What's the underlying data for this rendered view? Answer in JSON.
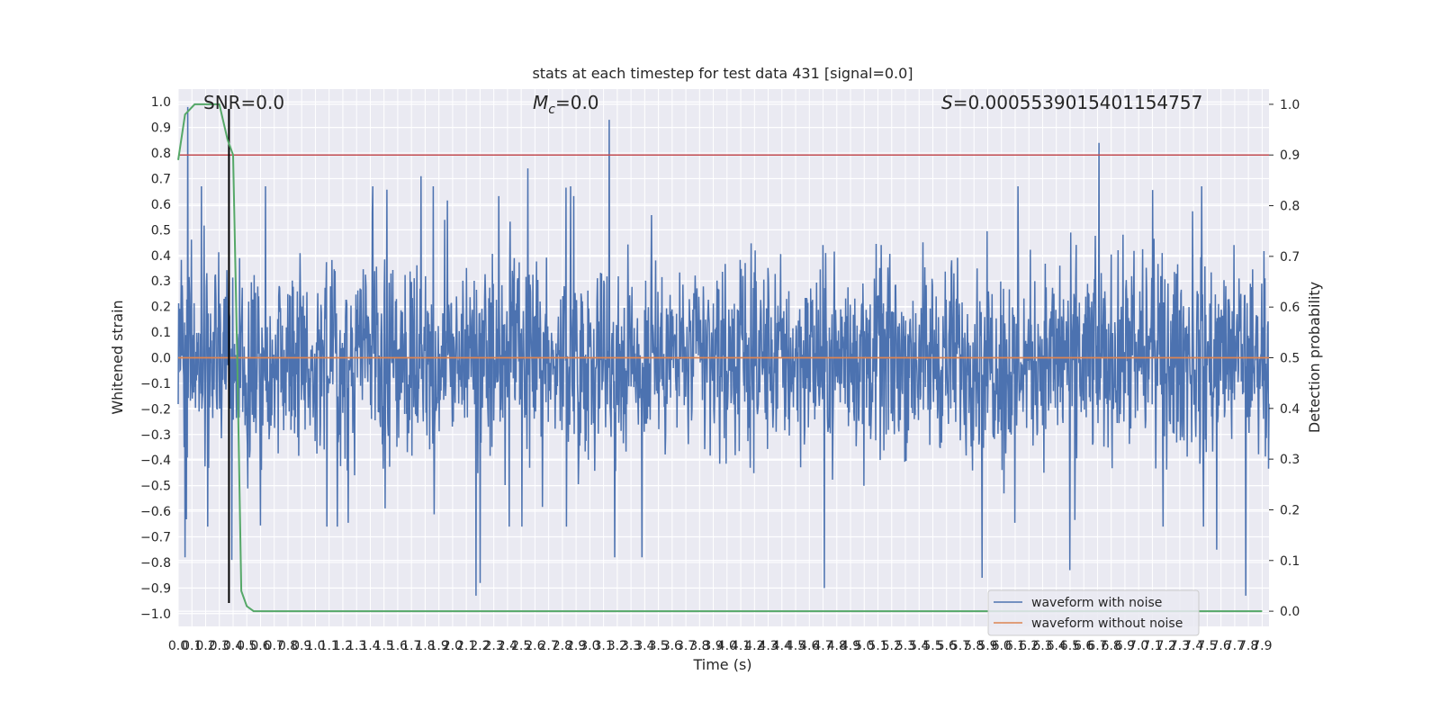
{
  "chart_data": {
    "type": "line",
    "title": "stats at each timestep for test data 431 [signal=0.0]",
    "xlabel": "Time (s)",
    "ylabel": "Whitened strain",
    "ylabel_right": "Detection probability",
    "xlim": [
      0.0,
      7.95
    ],
    "ylim": [
      -1.05,
      1.05
    ],
    "ylim_right": [
      -0.03,
      1.03
    ],
    "x_ticks_step": 0.1,
    "x_ticks_count": 80,
    "y_ticks": [
      -1.0,
      -0.9,
      -0.8,
      -0.7,
      -0.6,
      -0.5,
      -0.4,
      -0.3,
      -0.2,
      -0.1,
      0.0,
      0.1,
      0.2,
      0.3,
      0.4,
      0.5,
      0.6,
      0.7,
      0.8,
      0.9,
      1.0
    ],
    "y_ticks_right": [
      0.0,
      0.1,
      0.2,
      0.3,
      0.4,
      0.5,
      0.6,
      0.7,
      0.8,
      0.9,
      1.0
    ],
    "grid": true,
    "annotations": {
      "snr": "SNR=0.0",
      "mc_symbol": "M",
      "mc_sub": "c",
      "mc_value": "=0.0",
      "s_symbol": "S",
      "s_value": "=0.0005539015401154757"
    },
    "series": [
      {
        "name": "waveform with noise",
        "color": "#4c72b0",
        "kind": "noise",
        "envelope_typical": [
          -0.36,
          0.37
        ],
        "peaks": [
          {
            "x": 0.07,
            "y": 0.98
          },
          {
            "x": 2.55,
            "y": 0.74
          },
          {
            "x": 3.14,
            "y": 0.93
          },
          {
            "x": 6.71,
            "y": 0.84
          },
          {
            "x": 1.77,
            "y": 0.71
          },
          {
            "x": 6.12,
            "y": 0.67
          },
          {
            "x": 2.17,
            "y": -0.93
          },
          {
            "x": 2.2,
            "y": -0.88
          },
          {
            "x": 4.71,
            "y": -0.9
          },
          {
            "x": 7.78,
            "y": -0.93
          },
          {
            "x": 5.86,
            "y": -0.86
          },
          {
            "x": 6.5,
            "y": -0.83
          },
          {
            "x": 0.05,
            "y": -0.78
          },
          {
            "x": 3.18,
            "y": -0.78
          },
          {
            "x": 3.38,
            "y": -0.78
          },
          {
            "x": 7.57,
            "y": -0.75
          },
          {
            "x": 0.39,
            "y": -0.79
          }
        ]
      },
      {
        "name": "waveform without noise",
        "color": "#dd8452",
        "x": [
          0.0,
          7.95
        ],
        "y": [
          0.0,
          0.0
        ]
      },
      {
        "name": "detection probability",
        "color": "#55a868",
        "axis": "right",
        "x": [
          0.0,
          0.05,
          0.12,
          0.2,
          0.3,
          0.36,
          0.4,
          0.43,
          0.46,
          0.5,
          0.55,
          0.6,
          1.0,
          2.0,
          3.0,
          4.0,
          5.0,
          6.0,
          7.0,
          7.9
        ],
        "y": [
          0.89,
          0.98,
          1.0,
          1.0,
          1.0,
          0.93,
          0.9,
          0.5,
          0.04,
          0.01,
          0.0,
          0.0,
          0.0,
          0.0,
          0.0,
          0.0,
          0.0,
          0.0,
          0.0,
          0.0
        ]
      }
    ],
    "reference_lines": [
      {
        "axis": "right",
        "y": 0.9,
        "color": "#c44e52"
      },
      {
        "axis": "x",
        "x": 0.37,
        "color": "#000000"
      }
    ],
    "legend": {
      "placement": "lower-right",
      "entries": [
        "waveform with noise",
        "waveform without noise"
      ]
    }
  }
}
